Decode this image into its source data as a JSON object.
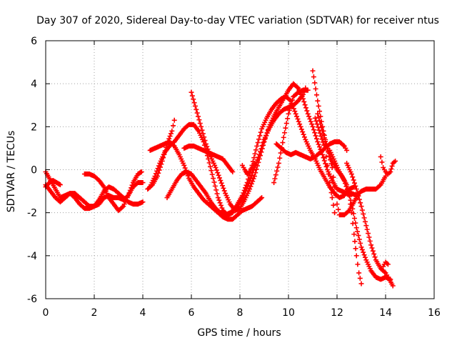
{
  "chart_data": {
    "type": "scatter",
    "title": "Day 307 of 2020, Sidereal Day-to-day VTEC variation (SDTVAR) for receiver ntus",
    "xlabel": "GPS time / hours",
    "ylabel": "SDTVAR / TECUs",
    "xlim": [
      0,
      16
    ],
    "ylim": [
      -6,
      6
    ],
    "x_ticks": [
      "0",
      "2",
      "4",
      "6",
      "8",
      "10",
      "12",
      "14",
      "16"
    ],
    "y_ticks": [
      "-6",
      "-4",
      "-2",
      "0",
      "2",
      "4",
      "6"
    ],
    "grid": true,
    "marker": "+",
    "color": "#ff0000",
    "series": [
      {
        "points": [
          [
            0.0,
            -0.1
          ],
          [
            0.2,
            -0.5
          ],
          [
            0.4,
            -0.9
          ],
          [
            0.6,
            -1.3
          ],
          [
            0.8,
            -1.2
          ],
          [
            1.0,
            -1.1
          ],
          [
            1.2,
            -1.3
          ],
          [
            1.4,
            -1.6
          ],
          [
            1.6,
            -1.8
          ],
          [
            1.8,
            -1.8
          ],
          [
            2.0,
            -1.7
          ],
          [
            2.2,
            -1.4
          ],
          [
            2.4,
            -1.0
          ],
          [
            2.6,
            -0.8
          ],
          [
            2.8,
            -0.9
          ],
          [
            3.0,
            -1.1
          ],
          [
            3.2,
            -1.3
          ],
          [
            3.4,
            -1.5
          ],
          [
            3.6,
            -1.6
          ],
          [
            3.8,
            -1.6
          ],
          [
            4.0,
            -1.5
          ]
        ]
      },
      {
        "points": [
          [
            0.0,
            -0.7
          ],
          [
            0.2,
            -1.0
          ],
          [
            0.4,
            -1.3
          ],
          [
            0.6,
            -1.5
          ],
          [
            0.8,
            -1.3
          ],
          [
            1.0,
            -1.1
          ],
          [
            1.2,
            -1.1
          ],
          [
            1.4,
            -1.3
          ],
          [
            1.6,
            -1.5
          ],
          [
            1.8,
            -1.7
          ],
          [
            2.0,
            -1.7
          ],
          [
            2.2,
            -1.6
          ],
          [
            2.4,
            -1.3
          ],
          [
            2.6,
            -1.2
          ],
          [
            2.8,
            -1.3
          ],
          [
            3.0,
            -1.3
          ],
          [
            3.2,
            -1.4
          ],
          [
            3.4,
            -1.2
          ],
          [
            3.6,
            -0.6
          ],
          [
            3.8,
            -0.2
          ],
          [
            3.95,
            -0.1
          ]
        ]
      },
      {
        "points": [
          [
            0.0,
            -0.8
          ],
          [
            0.15,
            -0.6
          ],
          [
            0.3,
            -0.5
          ],
          [
            0.45,
            -0.6
          ],
          [
            0.6,
            -0.7
          ]
        ]
      },
      {
        "points": [
          [
            1.6,
            -0.2
          ],
          [
            1.8,
            -0.2
          ],
          [
            2.0,
            -0.3
          ],
          [
            2.2,
            -0.5
          ],
          [
            2.4,
            -0.8
          ],
          [
            2.6,
            -1.3
          ],
          [
            2.8,
            -1.6
          ],
          [
            3.0,
            -1.9
          ],
          [
            3.2,
            -1.7
          ],
          [
            3.4,
            -1.2
          ],
          [
            3.6,
            -0.8
          ],
          [
            3.8,
            -0.6
          ],
          [
            4.0,
            -0.6
          ]
        ]
      },
      {
        "points": [
          [
            4.2,
            -0.9
          ],
          [
            4.4,
            -0.7
          ],
          [
            4.6,
            -0.3
          ],
          [
            4.8,
            0.4
          ],
          [
            5.0,
            1.2
          ],
          [
            5.2,
            1.8
          ],
          [
            5.3,
            2.3
          ]
        ]
      },
      {
        "points": [
          [
            4.3,
            0.9
          ],
          [
            4.5,
            1.0
          ],
          [
            4.7,
            1.1
          ],
          [
            4.9,
            1.2
          ],
          [
            5.1,
            1.3
          ],
          [
            5.3,
            1.1
          ],
          [
            5.5,
            0.7
          ],
          [
            5.7,
            0.2
          ],
          [
            5.9,
            -0.4
          ],
          [
            6.1,
            -0.8
          ],
          [
            6.3,
            -1.1
          ],
          [
            6.5,
            -1.4
          ],
          [
            6.7,
            -1.6
          ],
          [
            6.9,
            -1.8
          ],
          [
            7.1,
            -2.0
          ],
          [
            7.3,
            -2.2
          ],
          [
            7.5,
            -2.3
          ],
          [
            7.7,
            -2.3
          ],
          [
            7.9,
            -2.1
          ],
          [
            8.1,
            -1.9
          ],
          [
            8.3,
            -1.8
          ],
          [
            8.5,
            -1.7
          ],
          [
            8.7,
            -1.5
          ],
          [
            8.9,
            -1.3
          ]
        ]
      },
      {
        "points": [
          [
            4.3,
            -0.8
          ],
          [
            4.5,
            -0.3
          ],
          [
            4.7,
            0.3
          ],
          [
            4.9,
            0.8
          ],
          [
            5.1,
            1.1
          ],
          [
            5.3,
            1.3
          ],
          [
            5.5,
            1.6
          ],
          [
            5.7,
            1.9
          ],
          [
            5.9,
            2.1
          ],
          [
            6.1,
            2.1
          ],
          [
            6.3,
            1.8
          ],
          [
            6.5,
            1.3
          ],
          [
            6.7,
            0.5
          ],
          [
            6.9,
            -0.4
          ],
          [
            7.1,
            -1.3
          ],
          [
            7.3,
            -1.9
          ],
          [
            7.5,
            -2.1
          ],
          [
            7.7,
            -2.0
          ],
          [
            7.9,
            -1.6
          ],
          [
            8.1,
            -1.2
          ],
          [
            8.3,
            -0.6
          ],
          [
            8.5,
            0.2
          ],
          [
            8.7,
            1.1
          ],
          [
            8.9,
            1.9
          ],
          [
            9.1,
            2.4
          ],
          [
            9.3,
            2.8
          ],
          [
            9.5,
            3.1
          ],
          [
            9.7,
            3.3
          ],
          [
            9.9,
            3.4
          ],
          [
            10.1,
            3.2
          ],
          [
            10.3,
            2.6
          ],
          [
            10.5,
            2.0
          ],
          [
            10.7,
            1.4
          ],
          [
            10.9,
            0.9
          ],
          [
            11.1,
            0.5
          ],
          [
            11.3,
            0.0
          ],
          [
            11.5,
            -0.4
          ],
          [
            11.7,
            -0.8
          ],
          [
            11.9,
            -1.1
          ],
          [
            12.1,
            -1.3
          ],
          [
            12.3,
            -1.2
          ],
          [
            12.5,
            -0.9
          ],
          [
            12.7,
            -0.8
          ]
        ]
      },
      {
        "points": [
          [
            5.0,
            -1.3
          ],
          [
            5.2,
            -0.9
          ],
          [
            5.4,
            -0.5
          ],
          [
            5.6,
            -0.2
          ],
          [
            5.8,
            -0.1
          ],
          [
            6.0,
            -0.2
          ],
          [
            6.2,
            -0.5
          ],
          [
            6.4,
            -0.8
          ],
          [
            6.6,
            -1.1
          ],
          [
            6.8,
            -1.5
          ],
          [
            7.0,
            -1.8
          ],
          [
            7.2,
            -2.0
          ],
          [
            7.4,
            -2.1
          ],
          [
            7.6,
            -2.0
          ],
          [
            7.8,
            -1.8
          ],
          [
            8.0,
            -1.5
          ],
          [
            8.2,
            -1.1
          ],
          [
            8.4,
            -0.5
          ],
          [
            8.6,
            0.1
          ],
          [
            8.8,
            0.7
          ],
          [
            9.0,
            1.4
          ],
          [
            9.2,
            1.9
          ],
          [
            9.4,
            2.3
          ],
          [
            9.6,
            2.6
          ],
          [
            9.8,
            2.8
          ],
          [
            10.0,
            2.9
          ],
          [
            10.2,
            3.0
          ],
          [
            10.4,
            3.2
          ],
          [
            10.6,
            3.5
          ],
          [
            10.7,
            3.8
          ]
        ]
      },
      {
        "points": [
          [
            6.0,
            3.6
          ],
          [
            6.2,
            2.8
          ],
          [
            6.4,
            2.0
          ],
          [
            6.6,
            1.2
          ],
          [
            6.8,
            0.6
          ],
          [
            7.0,
            0.1
          ],
          [
            7.2,
            -0.5
          ],
          [
            7.4,
            -1.1
          ],
          [
            7.6,
            -1.6
          ],
          [
            7.8,
            -1.9
          ],
          [
            8.0,
            -1.8
          ],
          [
            8.2,
            -1.4
          ],
          [
            8.4,
            -0.9
          ],
          [
            8.6,
            -0.3
          ],
          [
            8.8,
            0.5
          ],
          [
            9.0,
            1.3
          ],
          [
            9.2,
            2.0
          ],
          [
            9.4,
            2.5
          ],
          [
            9.6,
            2.9
          ],
          [
            9.8,
            3.3
          ],
          [
            10.0,
            3.7
          ],
          [
            10.2,
            4.0
          ],
          [
            10.4,
            3.8
          ],
          [
            10.6,
            3.3
          ],
          [
            10.8,
            2.6
          ],
          [
            11.0,
            2.0
          ],
          [
            11.2,
            1.3
          ],
          [
            11.4,
            0.7
          ],
          [
            11.6,
            0.0
          ],
          [
            11.8,
            -0.5
          ],
          [
            12.0,
            -0.9
          ],
          [
            12.2,
            -1.0
          ],
          [
            12.4,
            -1.1
          ],
          [
            12.6,
            -1.1
          ],
          [
            12.8,
            -1.2
          ],
          [
            13.0,
            -1.0
          ],
          [
            13.2,
            -0.9
          ],
          [
            13.4,
            -0.9
          ],
          [
            13.6,
            -0.9
          ],
          [
            13.8,
            -0.7
          ],
          [
            14.0,
            -0.3
          ]
        ]
      },
      {
        "points": [
          [
            5.7,
            1.0
          ],
          [
            5.9,
            1.1
          ],
          [
            6.1,
            1.1
          ],
          [
            6.3,
            1.0
          ],
          [
            6.5,
            0.9
          ],
          [
            6.7,
            0.8
          ],
          [
            6.9,
            0.7
          ],
          [
            7.1,
            0.6
          ],
          [
            7.3,
            0.5
          ],
          [
            7.5,
            0.2
          ],
          [
            7.7,
            -0.1
          ]
        ]
      },
      {
        "points": [
          [
            8.1,
            0.2
          ],
          [
            8.2,
            0.0
          ],
          [
            8.3,
            -0.2
          ],
          [
            8.4,
            -0.1
          ],
          [
            8.5,
            0.1
          ],
          [
            8.6,
            0.3
          ]
        ]
      },
      {
        "points": [
          [
            9.4,
            -0.6
          ],
          [
            9.6,
            0.3
          ],
          [
            9.8,
            1.5
          ],
          [
            10.0,
            2.6
          ],
          [
            10.2,
            3.4
          ],
          [
            10.4,
            3.6
          ],
          [
            10.6,
            3.7
          ],
          [
            10.8,
            3.7
          ]
        ]
      },
      {
        "points": [
          [
            9.5,
            1.2
          ],
          [
            9.7,
            1.0
          ],
          [
            9.9,
            0.8
          ],
          [
            10.1,
            0.7
          ],
          [
            10.3,
            0.8
          ],
          [
            10.5,
            0.7
          ],
          [
            10.7,
            0.6
          ],
          [
            10.9,
            0.5
          ],
          [
            11.1,
            0.6
          ],
          [
            11.3,
            0.8
          ],
          [
            11.5,
            1.0
          ],
          [
            11.7,
            1.2
          ],
          [
            11.9,
            1.3
          ],
          [
            12.1,
            1.3
          ],
          [
            12.3,
            1.1
          ],
          [
            12.4,
            0.9
          ]
        ]
      },
      {
        "points": [
          [
            11.0,
            4.6
          ],
          [
            11.2,
            3.2
          ],
          [
            11.4,
            2.0
          ],
          [
            11.6,
            1.0
          ],
          [
            11.8,
            0.4
          ],
          [
            12.0,
            0.0
          ],
          [
            12.2,
            -0.3
          ],
          [
            12.4,
            -0.7
          ],
          [
            12.6,
            -1.6
          ],
          [
            12.8,
            -2.7
          ],
          [
            13.0,
            -3.6
          ],
          [
            13.2,
            -4.2
          ],
          [
            13.4,
            -4.7
          ],
          [
            13.6,
            -5.0
          ],
          [
            13.8,
            -5.1
          ],
          [
            14.0,
            -5.0
          ],
          [
            14.2,
            -5.1
          ]
        ]
      },
      {
        "points": [
          [
            11.2,
            2.6
          ],
          [
            11.4,
            1.8
          ],
          [
            11.6,
            1.0
          ],
          [
            11.8,
            0.1
          ],
          [
            11.9,
            -0.8
          ],
          [
            12.0,
            -1.6
          ],
          [
            12.1,
            -2.1
          ],
          [
            12.3,
            -2.1
          ],
          [
            12.5,
            -1.9
          ],
          [
            12.7,
            -1.5
          ],
          [
            12.9,
            -1.1
          ]
        ]
      },
      {
        "points": [
          [
            11.1,
            2.4
          ],
          [
            11.3,
            1.7
          ],
          [
            11.5,
            1.0
          ],
          [
            11.6,
            0.2
          ],
          [
            11.7,
            -0.6
          ],
          [
            11.8,
            -1.3
          ],
          [
            11.9,
            -2.0
          ]
        ]
      },
      {
        "points": [
          [
            11.7,
            0.9
          ],
          [
            11.9,
            0.4
          ],
          [
            12.1,
            -0.1
          ],
          [
            12.3,
            -0.5
          ],
          [
            12.5,
            -1.2
          ],
          [
            12.6,
            -2.0
          ],
          [
            12.7,
            -3.0
          ],
          [
            12.8,
            -4.0
          ],
          [
            12.9,
            -4.8
          ],
          [
            13.0,
            -5.3
          ]
        ]
      },
      {
        "points": [
          [
            12.4,
            0.3
          ],
          [
            12.6,
            -0.2
          ],
          [
            12.8,
            -0.9
          ],
          [
            13.0,
            -1.7
          ],
          [
            13.2,
            -2.6
          ],
          [
            13.4,
            -3.5
          ],
          [
            13.6,
            -4.2
          ],
          [
            13.8,
            -4.6
          ],
          [
            14.0,
            -4.8
          ],
          [
            14.1,
            -5.0
          ],
          [
            14.3,
            -5.4
          ]
        ]
      },
      {
        "points": [
          [
            13.8,
            0.6
          ],
          [
            13.9,
            0.1
          ],
          [
            14.0,
            -0.1
          ],
          [
            14.1,
            -0.2
          ],
          [
            14.2,
            -0.1
          ],
          [
            14.3,
            0.3
          ],
          [
            14.4,
            0.4
          ]
        ]
      },
      {
        "points": [
          [
            13.9,
            -4.5
          ],
          [
            14.0,
            -4.3
          ],
          [
            14.1,
            -4.4
          ]
        ]
      }
    ]
  }
}
